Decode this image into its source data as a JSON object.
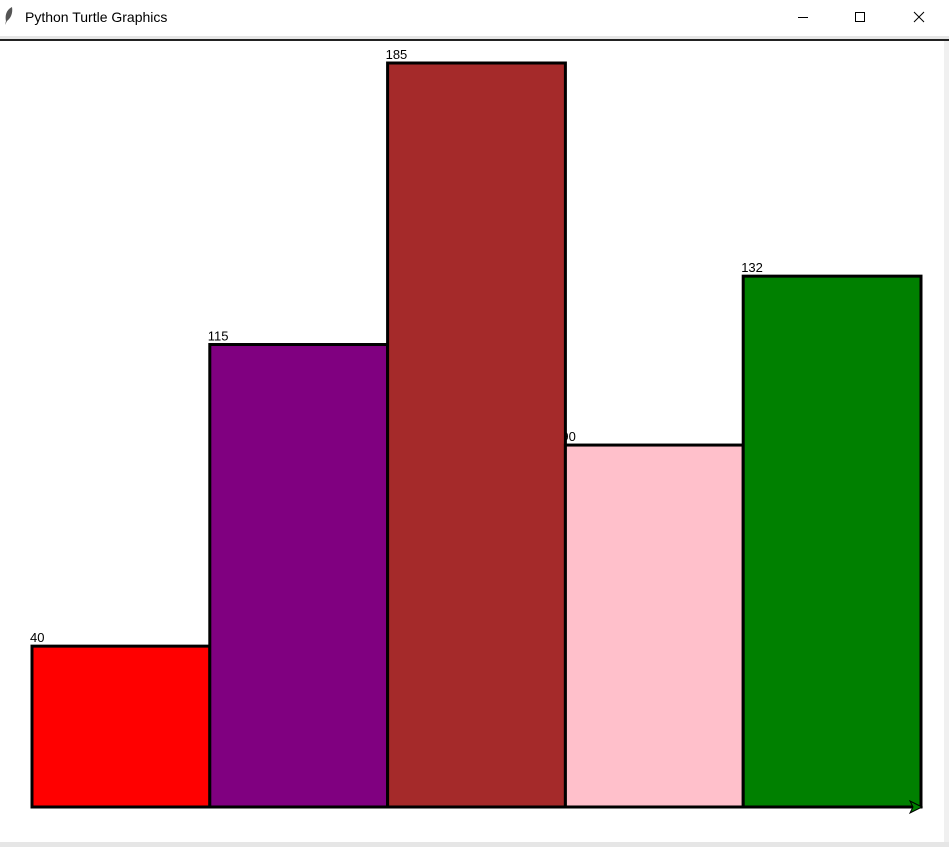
{
  "window": {
    "title": "Python Turtle Graphics",
    "icon": "feather-icon",
    "controls": [
      "minimize-icon",
      "maximize-icon",
      "close-icon"
    ]
  },
  "chart_data": {
    "type": "bar",
    "categories": [
      "",
      "",
      "",
      "",
      ""
    ],
    "values": [
      40,
      115,
      185,
      90,
      132
    ],
    "value_labels": [
      "40",
      "115",
      "185",
      "90",
      "132"
    ],
    "colors": [
      "#ff0000",
      "#800080",
      "#a52a2a",
      "#ffc0cb",
      "#008000"
    ],
    "outline_color": "#000000",
    "title": "",
    "xlabel": "",
    "ylabel": "",
    "ylim": [
      0,
      185
    ],
    "grid": false,
    "legend": "none"
  }
}
